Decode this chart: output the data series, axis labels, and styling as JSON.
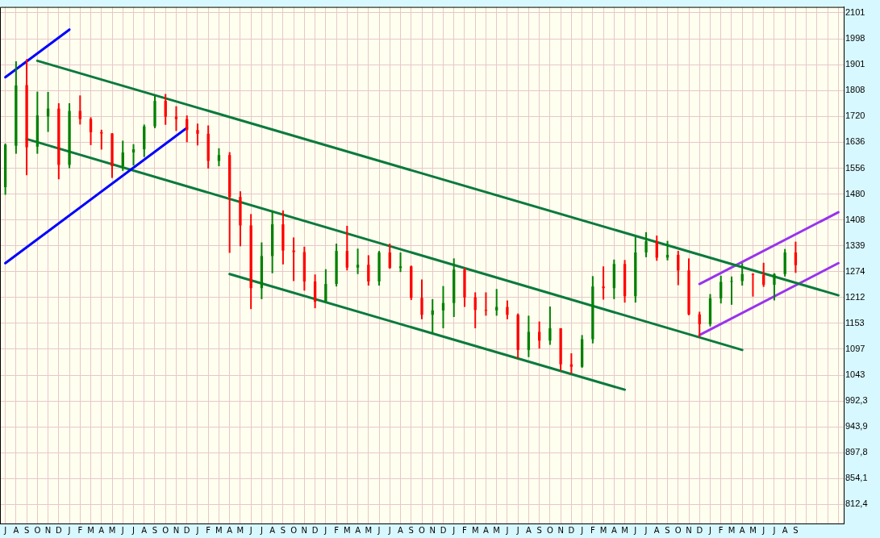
{
  "chart_data": {
    "type": "candlestick",
    "log": "y",
    "grid": true,
    "legend": false,
    "categories": [
      "J",
      "A",
      "S",
      "O",
      "N",
      "D",
      "J",
      "F",
      "M",
      "A",
      "M",
      "J",
      "J",
      "A",
      "S",
      "O",
      "N",
      "D",
      "J",
      "F",
      "M",
      "A",
      "M",
      "J",
      "J",
      "A",
      "S",
      "O",
      "N",
      "D",
      "J",
      "F",
      "M",
      "A",
      "M",
      "J",
      "J",
      "A",
      "S",
      "O",
      "N",
      "D",
      "J",
      "F",
      "M",
      "A",
      "M",
      "J",
      "J",
      "A",
      "S",
      "O",
      "N",
      "D",
      "J",
      "F",
      "M",
      "A",
      "M",
      "J",
      "J",
      "A",
      "S",
      "O",
      "N",
      "D",
      "J",
      "F",
      "M",
      "A",
      "M",
      "J",
      "J",
      "A",
      "S",
      null,
      null,
      null,
      null
    ],
    "ohlc": [
      [
        1500,
        1632,
        1478,
        1628
      ],
      [
        1625,
        1913,
        1600,
        1826
      ],
      [
        1827,
        1921,
        1535,
        1620
      ],
      [
        1622,
        1804,
        1600,
        1723
      ],
      [
        1720,
        1803,
        1669,
        1746
      ],
      [
        1746,
        1764,
        1523,
        1566
      ],
      [
        1566,
        1764,
        1556,
        1738
      ],
      [
        1738,
        1791,
        1693,
        1711
      ],
      [
        1711,
        1717,
        1627,
        1668
      ],
      [
        1668,
        1676,
        1613,
        1664
      ],
      [
        1664,
        1665,
        1527,
        1562
      ],
      [
        1562,
        1641,
        1548,
        1604
      ],
      [
        1604,
        1630,
        1564,
        1614
      ],
      [
        1614,
        1693,
        1590,
        1687
      ],
      [
        1687,
        1790,
        1681,
        1772
      ],
      [
        1772,
        1796,
        1692,
        1719
      ],
      [
        1719,
        1754,
        1672,
        1711
      ],
      [
        1711,
        1723,
        1636,
        1675
      ],
      [
        1675,
        1696,
        1626,
        1663
      ],
      [
        1663,
        1690,
        1555,
        1578
      ],
      [
        1578,
        1617,
        1562,
        1596
      ],
      [
        1596,
        1605,
        1321,
        1472
      ],
      [
        1472,
        1488,
        1338,
        1393
      ],
      [
        1393,
        1424,
        1185,
        1234
      ],
      [
        1234,
        1348,
        1208,
        1313
      ],
      [
        1313,
        1434,
        1270,
        1396
      ],
      [
        1396,
        1434,
        1292,
        1327
      ],
      [
        1327,
        1361,
        1251,
        1323
      ],
      [
        1323,
        1337,
        1228,
        1250
      ],
      [
        1250,
        1267,
        1187,
        1202
      ],
      [
        1202,
        1280,
        1202,
        1244
      ],
      [
        1244,
        1345,
        1238,
        1326
      ],
      [
        1326,
        1392,
        1277,
        1284
      ],
      [
        1284,
        1332,
        1268,
        1291
      ],
      [
        1291,
        1315,
        1240,
        1250
      ],
      [
        1250,
        1326,
        1240,
        1322
      ],
      [
        1322,
        1345,
        1281,
        1283
      ],
      [
        1283,
        1322,
        1273,
        1287
      ],
      [
        1287,
        1289,
        1206,
        1211
      ],
      [
        1211,
        1255,
        1162,
        1172
      ],
      [
        1172,
        1208,
        1131,
        1182
      ],
      [
        1182,
        1239,
        1142,
        1199
      ],
      [
        1199,
        1307,
        1167,
        1279
      ],
      [
        1279,
        1283,
        1190,
        1212
      ],
      [
        1212,
        1224,
        1142,
        1183
      ],
      [
        1183,
        1224,
        1170,
        1182
      ],
      [
        1182,
        1232,
        1170,
        1190
      ],
      [
        1190,
        1205,
        1162,
        1172
      ],
      [
        1172,
        1175,
        1077,
        1095
      ],
      [
        1095,
        1170,
        1080,
        1134
      ],
      [
        1134,
        1157,
        1098,
        1115
      ],
      [
        1115,
        1191,
        1106,
        1142
      ],
      [
        1142,
        1142,
        1052,
        1065
      ],
      [
        1065,
        1088,
        1046,
        1060
      ],
      [
        1060,
        1127,
        1058,
        1118
      ],
      [
        1118,
        1263,
        1109,
        1238
      ],
      [
        1238,
        1287,
        1207,
        1234
      ],
      [
        1234,
        1304,
        1208,
        1293
      ],
      [
        1293,
        1303,
        1200,
        1215
      ],
      [
        1215,
        1362,
        1200,
        1322
      ],
      [
        1322,
        1375,
        1310,
        1351
      ],
      [
        1351,
        1366,
        1301,
        1309
      ],
      [
        1309,
        1352,
        1302,
        1316
      ],
      [
        1316,
        1326,
        1241,
        1277
      ],
      [
        1277,
        1307,
        1171,
        1173
      ],
      [
        1173,
        1179,
        1123,
        1151
      ],
      [
        1151,
        1220,
        1146,
        1210
      ],
      [
        1210,
        1264,
        1198,
        1249
      ],
      [
        1249,
        1262,
        1195,
        1251
      ],
      [
        1251,
        1295,
        1240,
        1268
      ],
      [
        1268,
        1270,
        1214,
        1266
      ],
      [
        1266,
        1296,
        1237,
        1242
      ],
      [
        1242,
        1270,
        1205,
        1268
      ],
      [
        1268,
        1331,
        1262,
        1322
      ],
      [
        1322,
        1350,
        1271,
        1290
      ],
      null,
      null,
      null,
      null
    ],
    "colors": [
      "#008000",
      "#008000",
      "#ff0000",
      "#008000",
      "#008000",
      "#ff0000",
      "#008000",
      "#ff0000",
      "#ff0000",
      "#ff0000",
      "#ff0000",
      "#008000",
      "#008000",
      "#008000",
      "#008000",
      "#ff0000",
      "#ff0000",
      "#ff0000",
      "#ff0000",
      "#ff0000",
      "#008000",
      "#ff0000",
      "#ff0000",
      "#ff0000",
      "#008000",
      "#008000",
      "#ff0000",
      "#ff0000",
      "#ff0000",
      "#ff0000",
      "#008000",
      "#008000",
      "#ff0000",
      "#008000",
      "#ff0000",
      "#008000",
      "#ff0000",
      "#008000",
      "#ff0000",
      "#ff0000",
      "#008000",
      "#008000",
      "#008000",
      "#ff0000",
      "#ff0000",
      "#ff0000",
      "#008000",
      "#ff0000",
      "#ff0000",
      "#008000",
      "#ff0000",
      "#008000",
      "#ff0000",
      "#ff0000",
      "#008000",
      "#008000",
      "#ff0000",
      "#008000",
      "#ff0000",
      "#008000",
      "#008000",
      "#ff0000",
      "#008000",
      "#ff0000",
      "#ff0000",
      "#ff0000",
      "#008000",
      "#008000",
      "#008000",
      "#008000",
      "#ff0000",
      "#ff0000",
      "#008000",
      "#008000",
      "#ff0000",
      null,
      null,
      null,
      null
    ],
    "series": [
      {
        "type": "line",
        "color": "#0000ff",
        "values": [
          1855,
          null,
          null,
          null,
          null,
          null,
          2034,
          null,
          null,
          null,
          null,
          null,
          null,
          null,
          null,
          null,
          null,
          null,
          null,
          null,
          null,
          null,
          null,
          null,
          null,
          null,
          null,
          null,
          null,
          null,
          null,
          null,
          null,
          null,
          null,
          null,
          null,
          null,
          null,
          null,
          null,
          null,
          null,
          null,
          null,
          null,
          null,
          null,
          null,
          null,
          null,
          null,
          null,
          null,
          null,
          null,
          null,
          null,
          null,
          null,
          null,
          null,
          null,
          null,
          null,
          null,
          null,
          null,
          null,
          null,
          null,
          null,
          null,
          null,
          null,
          null,
          null,
          null,
          null
        ]
      },
      {
        "type": "line",
        "color": "#0000ff",
        "values": [
          1295,
          null,
          null,
          null,
          null,
          null,
          null,
          null,
          null,
          null,
          null,
          null,
          null,
          null,
          null,
          null,
          null,
          1682,
          null,
          null,
          null,
          null,
          null,
          null,
          null,
          null,
          null,
          null,
          null,
          null,
          null,
          null,
          null,
          null,
          null,
          null,
          null,
          null,
          null,
          null,
          null,
          null,
          null,
          null,
          null,
          null,
          null,
          null,
          null,
          null,
          null,
          null,
          null,
          null,
          null,
          null,
          null,
          null,
          null,
          null,
          null,
          null,
          null,
          null,
          null,
          null,
          null,
          null,
          null,
          null,
          null,
          null,
          null,
          null,
          null,
          null,
          null,
          null,
          null
        ]
      },
      {
        "type": "line",
        "color": "#0a7a3c",
        "values": [
          null,
          null,
          null,
          1915,
          null,
          null,
          null,
          null,
          null,
          null,
          null,
          null,
          null,
          null,
          null,
          null,
          null,
          null,
          null,
          null,
          null,
          null,
          null,
          null,
          null,
          null,
          null,
          null,
          null,
          null,
          null,
          null,
          null,
          null,
          null,
          null,
          null,
          null,
          null,
          null,
          null,
          null,
          null,
          null,
          null,
          null,
          null,
          null,
          null,
          null,
          null,
          null,
          null,
          null,
          null,
          null,
          null,
          null,
          null,
          null,
          null,
          null,
          null,
          null,
          null,
          null,
          null,
          null,
          null,
          null,
          null,
          null,
          null,
          null,
          null,
          null,
          null,
          null,
          1217
        ]
      },
      {
        "type": "line",
        "color": "#0a7a3c",
        "values": [
          null,
          null,
          1646,
          null,
          null,
          null,
          null,
          null,
          null,
          null,
          null,
          null,
          null,
          null,
          null,
          null,
          null,
          null,
          null,
          null,
          null,
          null,
          null,
          null,
          null,
          null,
          null,
          null,
          null,
          null,
          null,
          null,
          null,
          null,
          null,
          null,
          null,
          null,
          null,
          null,
          null,
          null,
          null,
          null,
          null,
          null,
          null,
          null,
          null,
          null,
          null,
          null,
          null,
          null,
          null,
          null,
          null,
          null,
          null,
          null,
          null,
          null,
          null,
          null,
          null,
          null,
          null,
          null,
          null,
          1095,
          null,
          null,
          null,
          null,
          null,
          null,
          null,
          null,
          null
        ]
      },
      {
        "type": "line",
        "color": "#0a7a3c",
        "values": [
          null,
          null,
          null,
          null,
          null,
          null,
          null,
          null,
          null,
          null,
          null,
          null,
          null,
          null,
          null,
          null,
          null,
          null,
          null,
          null,
          null,
          1268,
          null,
          null,
          null,
          null,
          null,
          null,
          null,
          null,
          null,
          null,
          null,
          null,
          null,
          null,
          null,
          null,
          null,
          null,
          null,
          null,
          null,
          null,
          null,
          null,
          null,
          null,
          null,
          null,
          null,
          null,
          null,
          null,
          null,
          null,
          null,
          null,
          1014,
          null,
          null,
          null,
          null,
          null,
          null,
          null,
          null,
          null,
          null,
          null,
          null,
          null,
          null,
          null,
          null,
          null,
          null,
          null,
          null
        ]
      },
      {
        "type": "line",
        "color": "#9933ee",
        "values": [
          null,
          null,
          null,
          null,
          null,
          null,
          null,
          null,
          null,
          null,
          null,
          null,
          null,
          null,
          null,
          null,
          null,
          null,
          null,
          null,
          null,
          null,
          null,
          null,
          null,
          null,
          null,
          null,
          null,
          null,
          null,
          null,
          null,
          null,
          null,
          null,
          null,
          null,
          null,
          null,
          null,
          null,
          null,
          null,
          null,
          null,
          null,
          null,
          null,
          null,
          null,
          null,
          null,
          null,
          null,
          null,
          null,
          null,
          null,
          null,
          null,
          null,
          null,
          null,
          null,
          1244,
          null,
          null,
          null,
          null,
          null,
          null,
          null,
          null,
          null,
          null,
          null,
          null,
          1429
        ]
      },
      {
        "type": "line",
        "color": "#9933ee",
        "values": [
          null,
          null,
          null,
          null,
          null,
          null,
          null,
          null,
          null,
          null,
          null,
          null,
          null,
          null,
          null,
          null,
          null,
          null,
          null,
          null,
          null,
          null,
          null,
          null,
          null,
          null,
          null,
          null,
          null,
          null,
          null,
          null,
          null,
          null,
          null,
          null,
          null,
          null,
          null,
          null,
          null,
          null,
          null,
          null,
          null,
          null,
          null,
          null,
          null,
          null,
          null,
          null,
          null,
          null,
          null,
          null,
          null,
          null,
          null,
          null,
          null,
          null,
          null,
          null,
          null,
          1127,
          null,
          null,
          null,
          null,
          null,
          null,
          null,
          null,
          null,
          null,
          null,
          null,
          1295
        ]
      }
    ],
    "ylim": [
      783,
      2125
    ],
    "yticks": [
      {
        "value": 812.4,
        "label": "812,4"
      },
      {
        "value": 854.1,
        "label": "854,1"
      },
      {
        "value": 897.8,
        "label": "897,8"
      },
      {
        "value": 943.9,
        "label": "943,9"
      },
      {
        "value": 992.3,
        "label": "992,3"
      },
      1043,
      1097,
      1153,
      1212,
      1274,
      1339,
      1408,
      1480,
      1556,
      1636,
      1720,
      1808,
      1901,
      1998,
      2101
    ]
  }
}
